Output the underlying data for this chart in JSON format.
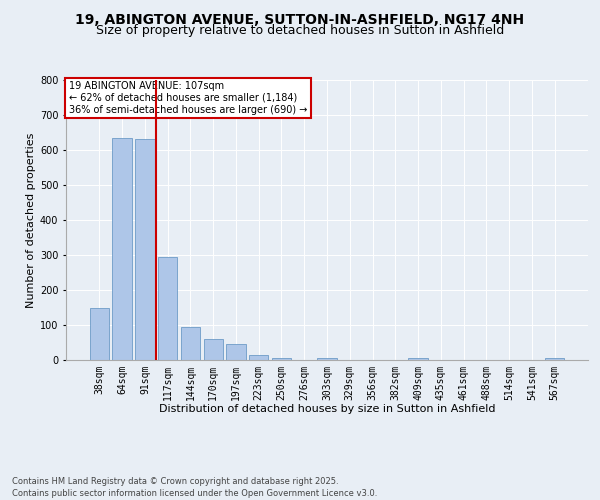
{
  "title_line1": "19, ABINGTON AVENUE, SUTTON-IN-ASHFIELD, NG17 4NH",
  "title_line2": "Size of property relative to detached houses in Sutton in Ashfield",
  "xlabel": "Distribution of detached houses by size in Sutton in Ashfield",
  "ylabel": "Number of detached properties",
  "categories": [
    "38sqm",
    "64sqm",
    "91sqm",
    "117sqm",
    "144sqm",
    "170sqm",
    "197sqm",
    "223sqm",
    "250sqm",
    "276sqm",
    "303sqm",
    "329sqm",
    "356sqm",
    "382sqm",
    "409sqm",
    "435sqm",
    "461sqm",
    "488sqm",
    "514sqm",
    "541sqm",
    "567sqm"
  ],
  "values": [
    150,
    635,
    630,
    295,
    95,
    60,
    45,
    15,
    5,
    0,
    5,
    0,
    0,
    0,
    5,
    0,
    0,
    0,
    0,
    0,
    5
  ],
  "bar_color": "#aec6e8",
  "bar_edge_color": "#5a8fc0",
  "property_line_x": 2.5,
  "annotation_text": "19 ABINGTON AVENUE: 107sqm\n← 62% of detached houses are smaller (1,184)\n36% of semi-detached houses are larger (690) →",
  "annotation_box_color": "#ffffff",
  "annotation_box_edge": "#cc0000",
  "vline_color": "#cc0000",
  "ylim": [
    0,
    800
  ],
  "yticks": [
    0,
    100,
    200,
    300,
    400,
    500,
    600,
    700,
    800
  ],
  "background_color": "#e8eef5",
  "plot_bg_color": "#e8eef5",
  "footer_text": "Contains HM Land Registry data © Crown copyright and database right 2025.\nContains public sector information licensed under the Open Government Licence v3.0.",
  "grid_color": "#ffffff",
  "title_fontsize": 10,
  "subtitle_fontsize": 9,
  "axis_label_fontsize": 8,
  "tick_fontsize": 7,
  "annotation_fontsize": 7,
  "footer_fontsize": 6
}
